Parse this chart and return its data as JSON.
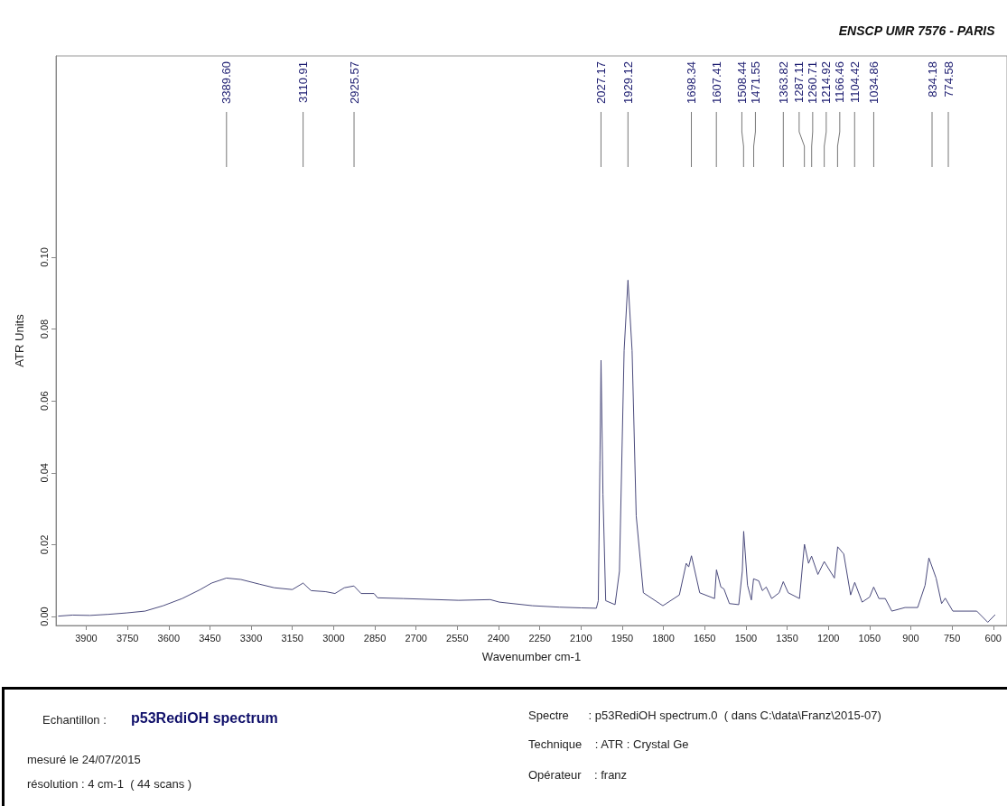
{
  "chart_data": {
    "type": "line",
    "title": "ENSCP UMR 7576 - PARIS",
    "xlabel": "Wavenumber cm-1",
    "ylabel": "ATR Units",
    "xlim": [
      4010,
      550
    ],
    "xticks": [
      3900,
      3750,
      3600,
      3450,
      3300,
      3150,
      3000,
      2850,
      2700,
      2550,
      2400,
      2250,
      2100,
      1950,
      1800,
      1650,
      1500,
      1350,
      1200,
      1050,
      900,
      750,
      600
    ],
    "ylim": [
      -0.0025,
      0.156
    ],
    "yticks": [
      {
        "value": 0,
        "label": "0.00"
      },
      {
        "value": 0.02,
        "label": "0.02"
      },
      {
        "value": 0.04,
        "label": "0.04"
      },
      {
        "value": 0.06,
        "label": "0.06"
      },
      {
        "value": 0.08,
        "label": "0.08"
      },
      {
        "value": 0.1,
        "label": "0.10"
      }
    ],
    "marker": "none",
    "color": "#4a4a7c",
    "x": [
      4002,
      3950,
      3887,
      3820,
      3753,
      3686,
      3620,
      3551,
      3485,
      3444,
      3390,
      3337,
      3270,
      3216,
      3150,
      3111,
      3082,
      3028,
      2995,
      2961,
      2926,
      2900,
      2853,
      2840,
      2746,
      2545,
      2430,
      2397,
      2276,
      2179,
      2100,
      2044,
      2037,
      2031,
      2027,
      2020,
      2010,
      1976,
      1960,
      1943,
      1929,
      1914,
      1899,
      1873,
      1802,
      1742,
      1717,
      1708,
      1698,
      1668,
      1614,
      1607,
      1591,
      1580,
      1560,
      1526,
      1513,
      1508,
      1494,
      1480,
      1472,
      1453,
      1440,
      1426,
      1406,
      1379,
      1364,
      1346,
      1305,
      1287,
      1272,
      1261,
      1238,
      1215,
      1178,
      1166,
      1144,
      1119,
      1104,
      1077,
      1050,
      1035,
      1016,
      993,
      969,
      921,
      875,
      848,
      834.18,
      808,
      788,
      774.58,
      747,
      660,
      620,
      593
    ],
    "values": [
      0.0001,
      0.0004,
      0.0003,
      0.0006,
      0.001,
      0.0015,
      0.003,
      0.005,
      0.0075,
      0.0093,
      0.0107,
      0.0103,
      0.009,
      0.008,
      0.0075,
      0.0093,
      0.0072,
      0.0069,
      0.0064,
      0.008,
      0.0085,
      0.0064,
      0.0064,
      0.0052,
      0.005,
      0.0045,
      0.0047,
      0.004,
      0.003,
      0.0026,
      0.0024,
      0.0023,
      0.0044,
      0.0434,
      0.0713,
      0.034,
      0.0044,
      0.0033,
      0.0126,
      0.074,
      0.0936,
      0.074,
      0.028,
      0.0066,
      0.003,
      0.006,
      0.0148,
      0.0138,
      0.0169,
      0.0066,
      0.005,
      0.013,
      0.0082,
      0.0077,
      0.0036,
      0.0033,
      0.0126,
      0.0237,
      0.0087,
      0.0046,
      0.0105,
      0.0099,
      0.0072,
      0.0082,
      0.005,
      0.0066,
      0.0097,
      0.0066,
      0.005,
      0.0201,
      0.0148,
      0.0168,
      0.0117,
      0.0153,
      0.0107,
      0.0194,
      0.0174,
      0.006,
      0.0095,
      0.004,
      0.0054,
      0.0082,
      0.005,
      0.005,
      0.0015,
      0.0025,
      0.0025,
      0.0087,
      0.0163,
      0.0107,
      0.0036,
      0.0051,
      0.0015,
      0.0015,
      -0.0016,
      0.0005
    ],
    "annotations": [
      {
        "text": "3389.60",
        "x": 3389.6
      },
      {
        "text": "3110.91",
        "x": 3110.91
      },
      {
        "text": "2925.57",
        "x": 2925.57
      },
      {
        "text": "2027.17",
        "x": 2027.17
      },
      {
        "text": "1929.12",
        "x": 1929.12
      },
      {
        "text": "1698.34",
        "x": 1698.34
      },
      {
        "text": "1607.41",
        "x": 1607.41
      },
      {
        "text": "1508.44",
        "x": 1508.44
      },
      {
        "text": "1471.55",
        "x": 1471.55
      },
      {
        "text": "1363.82",
        "x": 1363.82
      },
      {
        "text": "1287.11",
        "x": 1287.11
      },
      {
        "text": "1260.71",
        "x": 1260.71
      },
      {
        "text": "1214.92",
        "x": 1214.92
      },
      {
        "text": "1166.46",
        "x": 1166.46
      },
      {
        "text": "1104.42",
        "x": 1104.42
      },
      {
        "text": "1034.86",
        "x": 1034.86
      },
      "Echantillon :",
      "p53RediOH spectrum",
      "mesuré le 24/07/2015",
      "résolution : 4 cm-1  ( 44 scans )",
      "Spectre      : p53RediOH spectrum.0  ( dans C:\\data\\Franz\\2015-07)",
      "Technique    : ATR : Crystal Ge",
      "Opérateur    : franz",
      "834.18",
      "774.58"
    ]
  }
}
